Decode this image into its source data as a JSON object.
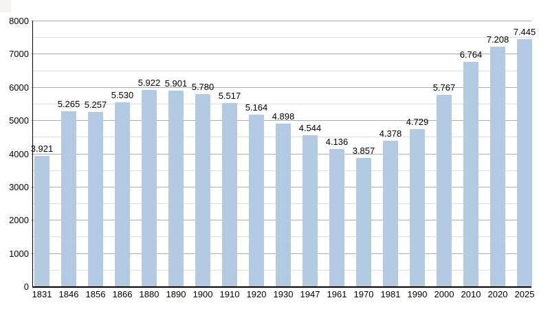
{
  "chart_data": {
    "type": "bar",
    "title": "",
    "xlabel": "",
    "ylabel": "",
    "categories": [
      "1831",
      "1846",
      "1856",
      "1866",
      "1880",
      "1890",
      "1900",
      "1910",
      "1920",
      "1930",
      "1947",
      "1961",
      "1970",
      "1981",
      "1990",
      "2000",
      "2010",
      "2020",
      "2025"
    ],
    "values": [
      3921,
      5265,
      5257,
      5530,
      5922,
      5901,
      5780,
      5517,
      5164,
      4898,
      4544,
      4136,
      3857,
      4378,
      4729,
      5767,
      6764,
      7208,
      7445
    ],
    "value_labels": [
      "3.921",
      "5.265",
      "5.257",
      "5.530",
      "5.922",
      "5.901",
      "5.780",
      "5.517",
      "5.164",
      "4.898",
      "4.544",
      "4.136",
      "3.857",
      "4.378",
      "4.729",
      "5.767",
      "6.764",
      "7.208",
      "7.445"
    ],
    "y_axis": {
      "min": 0,
      "max": 8000,
      "major_step": 1000,
      "minor_step": 500,
      "tick_labels": [
        "0",
        "1000",
        "2000",
        "3000",
        "4000",
        "5000",
        "6000",
        "7000",
        "8000"
      ]
    },
    "grid": true,
    "legend": "none",
    "colors": {
      "bar": "#b2cbe3",
      "major_grid": "#ababab",
      "minor_grid": "#dcdcdc",
      "axis": "#000000",
      "text": "#000000",
      "background": "#ffffff",
      "corner_artifact": "#f4f3f1"
    }
  }
}
